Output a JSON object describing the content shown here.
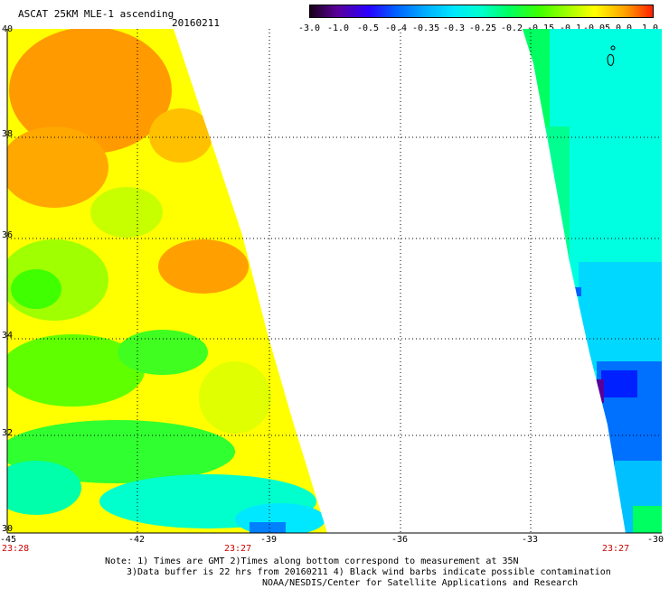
{
  "header": {
    "title": "ASCAT 25KM MLE-1 ascending",
    "date": "20160211"
  },
  "colorbar": {
    "tick_labels": [
      "-3.0",
      "-1.0",
      "-0.5",
      "-0.4",
      "-0.35",
      "-0.3",
      "-0.25",
      "-0.2",
      "-0.15",
      "-0.1",
      "-0.05",
      "0.0",
      "1.0"
    ],
    "colors": [
      "#1a001a",
      "#5a009a",
      "#2a00ff",
      "#0060ff",
      "#00a8ff",
      "#00e8ff",
      "#00ffcc",
      "#00ff60",
      "#40ff00",
      "#a0ff00",
      "#ffff00",
      "#ffa000",
      "#ff2000"
    ]
  },
  "map": {
    "lat_labels": [
      "40",
      "38",
      "36",
      "34",
      "32",
      "30"
    ],
    "lon_labels": [
      "-45",
      "-42",
      "-39",
      "-36",
      "-33",
      "-30"
    ],
    "times": [
      "23:28",
      "23:27",
      "23:27"
    ],
    "swath_left_colors": [
      "#ff9000",
      "#ffc000",
      "#ffff00",
      "#a0ff00",
      "#40ff00",
      "#00ff60",
      "#00ffcc"
    ],
    "swath_right_colors": [
      "#00ff60",
      "#00ffcc",
      "#00e8ff",
      "#00a8ff",
      "#0060ff",
      "#0020ff",
      "#5a009a"
    ]
  },
  "footer": {
    "line1": "Note: 1) Times are GMT 2)Times along bottom correspond to measurement at 35N",
    "line2": "3)Data buffer is 22 hrs from 20160211 4) Black wind barbs indicate possible contamination",
    "line3": "NOAA/NESDIS/Center for Satellite Applications and Research"
  }
}
